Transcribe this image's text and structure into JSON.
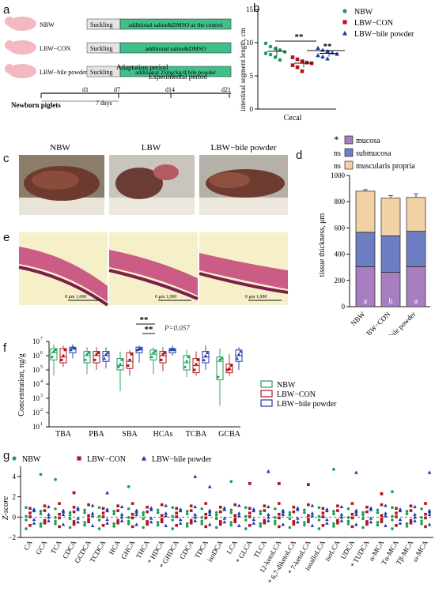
{
  "colors": {
    "nbw": "#1b9e5a",
    "lbw": "#b0151c",
    "bile": "#1a3aa8",
    "green_bar": "#3fbf8a",
    "grey_box": "#e4e4e4",
    "pig": "#f3b8c2",
    "mucosa": "#a77fc0",
    "submucosa": "#6e7ec4",
    "muscularis": "#f2d2a4",
    "he_bg": "#f6f0c8",
    "he_tissue": "#c2427a"
  },
  "panel_a": {
    "label": "a",
    "rows": [
      {
        "group": "NBW",
        "stage1": "Suckling",
        "stage2": "additional saline&DMSO as the control"
      },
      {
        "group": "LBW−CON",
        "stage1": "Suckling",
        "stage2": "additional saline&DMSO"
      },
      {
        "group": "LBW−bile powder",
        "stage1": "Suckling",
        "stage2": "additional 25mg/kg/d bile powder"
      }
    ],
    "period_labels": [
      "Adaptation period",
      "Experimental period"
    ],
    "sub_label": "7 days",
    "bottom_label": "Newborn piglets",
    "ticks": [
      "d1",
      "d7",
      "d14",
      "d21"
    ]
  },
  "panel_b": {
    "label": "b",
    "ylabel": "intestinal segment length, cm",
    "xlabel": "Cecal",
    "yticks": [
      "0",
      "5",
      "10",
      "15"
    ],
    "sig": [
      "**",
      "**"
    ],
    "legend": [
      "NBW",
      "LBW−CON",
      "LBW−bile powder"
    ],
    "chart_data": {
      "type": "scatter",
      "ylim": [
        0,
        15
      ],
      "series": [
        {
          "name": "NBW",
          "values": [
            9.9,
            9.4,
            9.1,
            8.9,
            8.6,
            8.4,
            8.2,
            7.8,
            7.4
          ],
          "mean": 8.7,
          "sd": 0.8
        },
        {
          "name": "LBW−CON",
          "values": [
            7.8,
            7.5,
            7.2,
            7.0,
            6.9,
            6.6,
            6.3,
            5.7
          ],
          "mean": 6.9,
          "sd": 0.6
        },
        {
          "name": "LBW−bile powder",
          "values": [
            9.2,
            8.9,
            8.7,
            8.5,
            8.3,
            8.1,
            7.9,
            7.6
          ],
          "mean": 8.4,
          "sd": 0.5
        }
      ]
    }
  },
  "panel_c": {
    "label": "c",
    "titles": [
      "NBW",
      "LBW",
      "LBW−bile powder"
    ]
  },
  "panel_d": {
    "label": "d",
    "ylabel": "tissue thickness, μm",
    "yticks": [
      "0",
      "200",
      "400",
      "600",
      "800",
      "1000"
    ],
    "legend": [
      {
        "name": "mucosa",
        "prefix": "*"
      },
      {
        "name": "submucosa",
        "prefix": "ns"
      },
      {
        "name": "muscularis propria",
        "prefix": "ns"
      }
    ],
    "categories": [
      "NBW",
      "LBW−CON",
      "LBW−bile powder"
    ],
    "letters": [
      "a",
      "b",
      "a"
    ],
    "chart_data": {
      "type": "bar",
      "stacked": true,
      "ylim": [
        0,
        1000
      ],
      "categories": [
        "NBW",
        "LBW−CON",
        "LBW−bile powder"
      ],
      "series": [
        {
          "name": "mucosa",
          "values": [
            305,
            262,
            305
          ]
        },
        {
          "name": "submucosa",
          "values": [
            262,
            278,
            270
          ]
        },
        {
          "name": "muscularis propria",
          "values": [
            313,
            287,
            257
          ]
        }
      ],
      "error_top": [
        12,
        20,
        28
      ]
    }
  },
  "panel_e": {
    "label": "e",
    "scale": "0      μm      1,000"
  },
  "panel_f": {
    "label": "f",
    "ylabel": "Concentration, ng/g",
    "ytick_labels": [
      "10",
      "10",
      "10",
      "10",
      "10",
      "10",
      "10"
    ],
    "ytick_exps": [
      "1",
      "2",
      "3",
      "4",
      "5",
      "6",
      "7"
    ],
    "sig": [
      "**",
      "**"
    ],
    "p_value": "P=0.057",
    "legend": [
      "NBW",
      "LBW−CON",
      "LBW−bile powder"
    ],
    "chart_data": {
      "type": "box",
      "yscale": "log10",
      "ylim_log": [
        1,
        7
      ],
      "categories": [
        "TBA",
        "PBA",
        "SBA",
        "HCAs",
        "TCBA",
        "GCBA"
      ],
      "series": [
        {
          "name": "NBW",
          "boxes": [
            [
              4.6,
              5.7,
              6.2,
              6.5,
              6.8
            ],
            [
              4.7,
              5.5,
              6.0,
              6.3,
              6.6
            ],
            [
              3.5,
              5.0,
              5.3,
              5.8,
              6.3
            ],
            [
              4.7,
              5.7,
              6.1,
              6.4,
              6.6
            ],
            [
              4.5,
              5.0,
              5.5,
              6.0,
              6.4
            ],
            [
              2.5,
              4.3,
              5.6,
              5.9,
              6.5
            ]
          ]
        },
        {
          "name": "LBW−CON",
          "boxes": [
            [
              5.2,
              5.5,
              5.9,
              6.5,
              6.7
            ],
            [
              5.0,
              5.5,
              6.0,
              6.3,
              6.6
            ],
            [
              4.6,
              5.1,
              5.6,
              6.2,
              6.4
            ],
            [
              4.9,
              5.5,
              6.0,
              6.3,
              6.6
            ],
            [
              4.6,
              4.8,
              5.3,
              5.8,
              6.3
            ],
            [
              4.6,
              4.8,
              5.0,
              5.4,
              6.1
            ]
          ]
        },
        {
          "name": "LBW−bile powder",
          "boxes": [
            [
              5.8,
              6.2,
              6.5,
              6.6,
              6.8
            ],
            [
              5.1,
              5.6,
              6.0,
              6.3,
              6.6
            ],
            [
              5.5,
              6.2,
              6.4,
              6.6,
              6.7
            ],
            [
              6.0,
              6.2,
              6.4,
              6.5,
              6.7
            ],
            [
              5.0,
              5.5,
              5.9,
              6.3,
              6.7
            ],
            [
              5.0,
              5.6,
              6.0,
              6.4,
              6.6
            ]
          ]
        }
      ]
    }
  },
  "panel_g": {
    "label": "g",
    "ylabel": "Z-score",
    "yticks": [
      "−2",
      "0",
      "2",
      "4"
    ],
    "legend": [
      "NBW",
      "LBW−CON",
      "LBW−bile powder"
    ],
    "chart_data": {
      "type": "scatter",
      "ylim": [
        -2,
        5
      ],
      "categories": [
        "CA",
        "GCA",
        "TCA",
        "CDCA",
        "GCDCA",
        "TCDCA",
        "HCA",
        "GHCA",
        "THCA",
        "HDCA",
        "GHDCA",
        "GDCA",
        "TDCA",
        "isoDCA",
        "LCA",
        "GLCA",
        "TLCA",
        "12-ketoLCA",
        "6,7-diketoLCA",
        "7-ketoLCA",
        "isoalloLCA",
        "isoLCA",
        "UDCA",
        "TUDCA",
        "α-MCA",
        "Tα-MCA",
        "Tβ-MCA",
        "ω-MCA"
      ],
      "starred": [
        "HDCA",
        "GHDCA",
        "GLCA",
        "6,7-diketoLCA",
        "7-ketoLCA",
        "TUDCA"
      ],
      "outliers": [
        {
          "cat": "GCA",
          "series": "NBW",
          "y": 4.2
        },
        {
          "cat": "TCA",
          "series": "NBW",
          "y": 3.7
        },
        {
          "cat": "CDCA",
          "series": "LBW−CON",
          "y": 2.4
        },
        {
          "cat": "TCDCA",
          "series": "LBW−bile powder",
          "y": 2.4
        },
        {
          "cat": "GHCA",
          "series": "NBW",
          "y": 3.0
        },
        {
          "cat": "GDCA",
          "series": "LBW−bile powder",
          "y": 4.0
        },
        {
          "cat": "TDCA",
          "series": "LBW−bile powder",
          "y": 3.0
        },
        {
          "cat": "LCA",
          "series": "NBW",
          "y": 3.5
        },
        {
          "cat": "GLCA",
          "series": "LBW−CON",
          "y": 3.3
        },
        {
          "cat": "TLCA",
          "series": "LBW−bile powder",
          "y": 4.5
        },
        {
          "cat": "12-ketoLCA",
          "series": "LBW−CON",
          "y": 3.3
        },
        {
          "cat": "7-ketoLCA",
          "series": "LBW−CON",
          "y": 3.2
        },
        {
          "cat": "isoLCA",
          "series": "NBW",
          "y": 4.7
        },
        {
          "cat": "UDCA",
          "series": "LBW−bile powder",
          "y": 4.4
        },
        {
          "cat": "α-MCA",
          "series": "LBW−CON",
          "y": 2.3
        },
        {
          "cat": "Tα-MCA",
          "series": "NBW",
          "y": 2.5
        },
        {
          "cat": "ω-MCA",
          "series": "LBW−bile powder",
          "y": 4.4
        }
      ]
    }
  }
}
